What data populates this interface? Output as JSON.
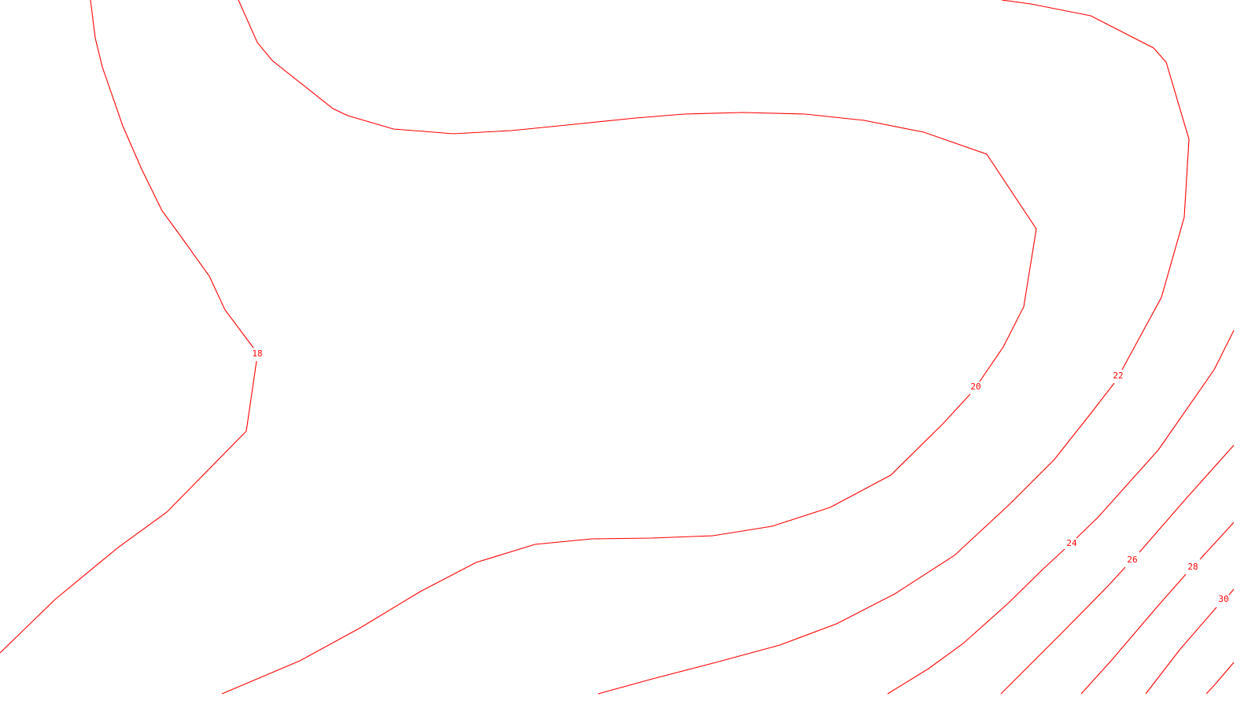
{
  "map": {
    "type": "contour-map",
    "line_color": "#ff0000",
    "background_color": "#ffffff",
    "contour_interval": 2,
    "contours": [
      {
        "level": 18,
        "label": "18"
      },
      {
        "level": 20,
        "label": "20"
      },
      {
        "level": 22,
        "label": "22"
      },
      {
        "level": 24,
        "label": "24"
      },
      {
        "level": 26,
        "label": "26"
      },
      {
        "level": 28,
        "label": "28"
      },
      {
        "level": 30,
        "label": "30"
      }
    ]
  }
}
